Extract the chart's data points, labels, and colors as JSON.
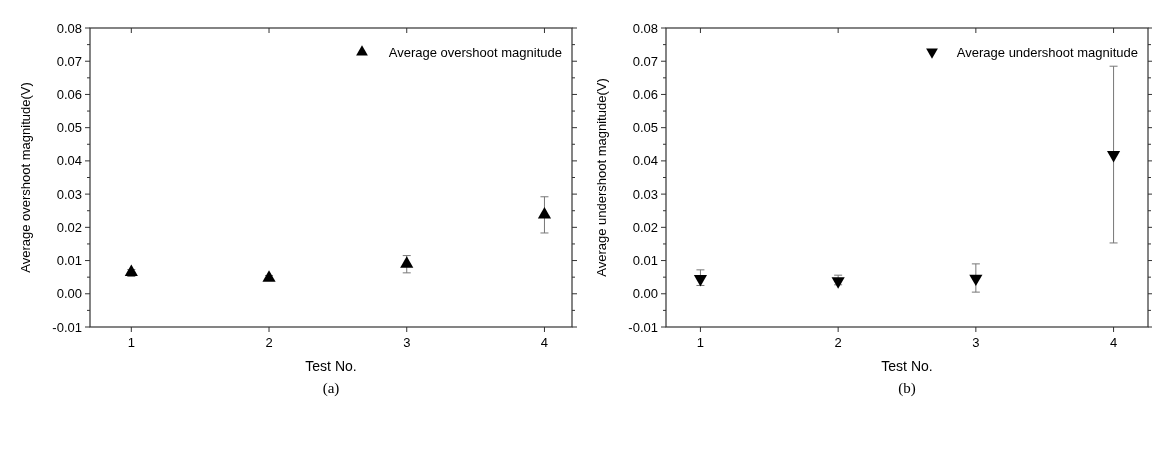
{
  "chart_data": [
    {
      "type": "scatter",
      "xlabel": "Test No.",
      "ylabel": "Average overshoot magnitude(V)",
      "x": [
        1,
        2,
        3,
        4
      ],
      "xlim": [
        0.7,
        4.2
      ],
      "xticks": [
        1,
        2,
        3,
        4
      ],
      "ylim": [
        -0.01,
        0.08
      ],
      "yticks": [
        {
          "value": -0.01,
          "label": "-0.01"
        },
        {
          "value": 0,
          "label": "0.00"
        },
        {
          "value": 0.01,
          "label": "0.01"
        },
        {
          "value": 0.02,
          "label": "0.02"
        },
        {
          "value": 0.03,
          "label": "0.03"
        },
        {
          "value": 0.04,
          "label": "0.04"
        },
        {
          "value": 0.05,
          "label": "0.05"
        },
        {
          "value": 0.06,
          "label": "0.06"
        },
        {
          "value": 0.07,
          "label": "0.07"
        },
        {
          "value": 0.08,
          "label": "0.08"
        }
      ],
      "series": [
        {
          "name": "Average overshoot magnitude",
          "color": "#000000",
          "values": [
            0.0065,
            0.0048,
            0.009,
            0.0238
          ],
          "errors": [
            [
              0.0052,
              0.0073
            ],
            [
              0.0043,
              0.0055
            ],
            [
              0.0063,
              0.0115
            ],
            [
              0.0183,
              0.0292
            ]
          ]
        }
      ],
      "marker": "triangle",
      "legend": "top right",
      "grid": false,
      "annotations": [
        "(a)"
      ]
    },
    {
      "type": "scatter",
      "xlabel": "Test No.",
      "ylabel": "Average undershoot magnitude(V)",
      "x": [
        1,
        2,
        3,
        4
      ],
      "xlim": [
        0.75,
        4.25
      ],
      "xticks": [
        1,
        2,
        3,
        4
      ],
      "ylim": [
        -0.01,
        0.08
      ],
      "yticks": [
        {
          "value": -0.01,
          "label": "-0.01"
        },
        {
          "value": 0,
          "label": "0.00"
        },
        {
          "value": 0.01,
          "label": "0.01"
        },
        {
          "value": 0.02,
          "label": "0.02"
        },
        {
          "value": 0.03,
          "label": "0.03"
        },
        {
          "value": 0.04,
          "label": "0.04"
        },
        {
          "value": 0.05,
          "label": "0.05"
        },
        {
          "value": 0.06,
          "label": "0.06"
        },
        {
          "value": 0.07,
          "label": "0.07"
        },
        {
          "value": 0.08,
          "label": "0.08"
        }
      ],
      "series": [
        {
          "name": "Average undershoot magnitude",
          "color": "#000000",
          "values": [
            0.0045,
            0.0038,
            0.0046,
            0.0418
          ],
          "errors": [
            [
              0.0025,
              0.0072
            ],
            [
              0.0027,
              0.0056
            ],
            [
              0.0005,
              0.009
            ],
            [
              0.0153,
              0.0685
            ]
          ]
        }
      ],
      "marker": "triangle",
      "legend": "top right",
      "grid": false,
      "annotations": [
        "(b)"
      ]
    }
  ]
}
